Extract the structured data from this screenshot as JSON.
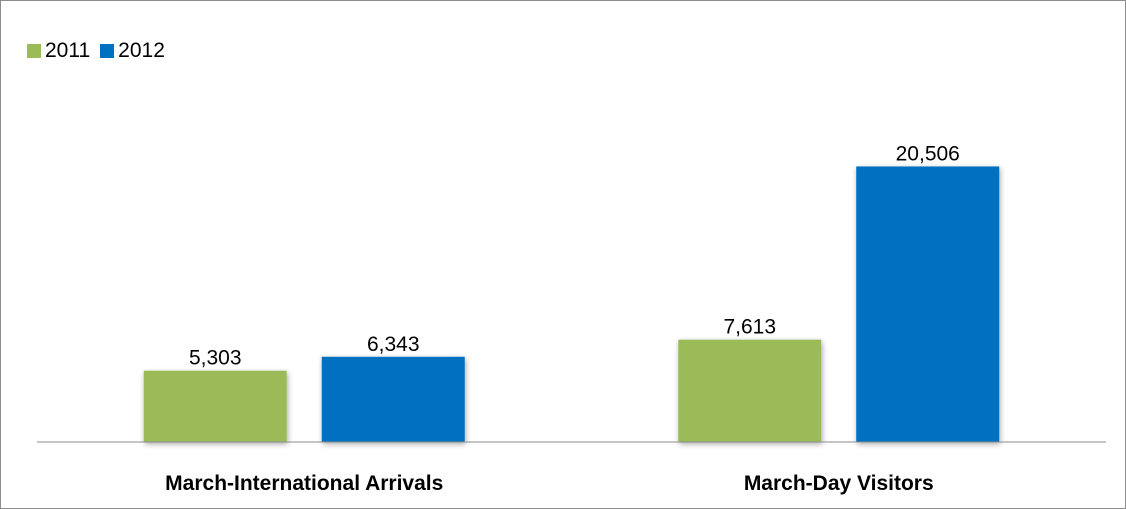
{
  "chart_data": {
    "type": "bar",
    "categories": [
      "March-International Arrivals",
      "March-Day Visitors"
    ],
    "series": [
      {
        "name": "2011",
        "values": [
          5303,
          7613
        ],
        "labels": [
          "5,303",
          "7,613"
        ],
        "color": "#9BBB59"
      },
      {
        "name": "2012",
        "values": [
          6343,
          20506
        ],
        "labels": [
          "6,343",
          "20,506"
        ],
        "color": "#0070C0"
      }
    ],
    "legend_position": "top-left",
    "grid": false
  }
}
